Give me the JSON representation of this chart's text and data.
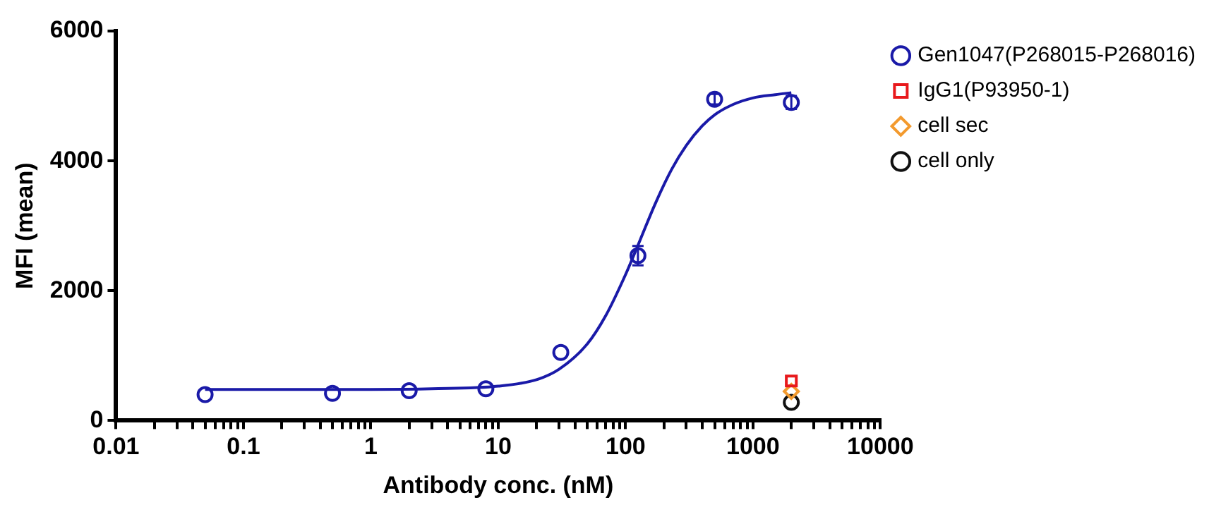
{
  "chart_data": {
    "type": "scatter",
    "xlabel": "Antibody conc. (nM)",
    "ylabel": "MFI (mean)",
    "log": "x",
    "xlim": [
      0.01,
      10000
    ],
    "xticks": [
      0.01,
      {
        "value": 0.02,
        "label": null
      },
      {
        "value": 0.03,
        "label": null
      },
      {
        "value": 0.04,
        "label": null
      },
      {
        "value": 0.05,
        "label": null
      },
      {
        "value": 0.06,
        "label": null
      },
      {
        "value": 0.07,
        "label": null
      },
      {
        "value": 0.08,
        "label": null
      },
      {
        "value": 0.09,
        "label": null
      },
      0.1,
      {
        "value": 0.2,
        "label": null
      },
      {
        "value": 0.3,
        "label": null
      },
      {
        "value": 0.4,
        "label": null
      },
      {
        "value": 0.5,
        "label": null
      },
      {
        "value": 0.6,
        "label": null
      },
      {
        "value": 0.7,
        "label": null
      },
      {
        "value": 0.8,
        "label": null
      },
      {
        "value": 0.9,
        "label": null
      },
      1,
      {
        "value": 2,
        "label": null
      },
      {
        "value": 3,
        "label": null
      },
      {
        "value": 4,
        "label": null
      },
      {
        "value": 5,
        "label": null
      },
      {
        "value": 6,
        "label": null
      },
      {
        "value": 7,
        "label": null
      },
      {
        "value": 8,
        "label": null
      },
      {
        "value": 9,
        "label": null
      },
      10,
      {
        "value": 20,
        "label": null
      },
      {
        "value": 30,
        "label": null
      },
      {
        "value": 40,
        "label": null
      },
      {
        "value": 50,
        "label": null
      },
      {
        "value": 60,
        "label": null
      },
      {
        "value": 70,
        "label": null
      },
      {
        "value": 80,
        "label": null
      },
      {
        "value": 90,
        "label": null
      },
      100,
      {
        "value": 200,
        "label": null
      },
      {
        "value": 300,
        "label": null
      },
      {
        "value": 400,
        "label": null
      },
      {
        "value": 500,
        "label": null
      },
      {
        "value": 600,
        "label": null
      },
      {
        "value": 700,
        "label": null
      },
      {
        "value": 800,
        "label": null
      },
      {
        "value": 900,
        "label": null
      },
      1000,
      {
        "value": 2000,
        "label": null
      },
      {
        "value": 3000,
        "label": null
      },
      {
        "value": 4000,
        "label": null
      },
      {
        "value": 5000,
        "label": null
      },
      {
        "value": 6000,
        "label": null
      },
      {
        "value": 7000,
        "label": null
      },
      {
        "value": 8000,
        "label": null
      },
      {
        "value": 9000,
        "label": null
      },
      10000
    ],
    "ylim": [
      0,
      6000
    ],
    "yticks": [
      0,
      2000,
      4000,
      6000
    ],
    "grid": false,
    "legend": "right",
    "series": [
      {
        "name": "Gen1047(P268015-P268016)",
        "color": "#1a1aa8",
        "marker": "circle",
        "x": [
          0.05,
          0.5,
          2,
          8,
          31,
          125,
          500,
          2000
        ],
        "values": [
          400,
          420,
          460,
          490,
          1050,
          2540,
          4950,
          4900
        ],
        "errors": [
          null,
          null,
          null,
          null,
          null,
          150,
          80,
          100
        ]
      },
      {
        "name": "IgG1(P93950-1)",
        "color": "#e8191c",
        "marker": "square",
        "x": [
          2000
        ],
        "values": [
          610
        ]
      },
      {
        "name": "cell sec",
        "color": "#f39a2e",
        "marker": "diamond",
        "x": [
          2000
        ],
        "values": [
          450
        ]
      },
      {
        "name": "cell only",
        "color": "#111111",
        "marker": "circle",
        "x": [
          2000
        ],
        "values": [
          280
        ]
      },
      {
        "type": "line",
        "color": "#1a1aa8",
        "marker": "none",
        "x": [
          0.05,
          0.1,
          1,
          3,
          10,
          20,
          30,
          50,
          70,
          100,
          130,
          170,
          230,
          300,
          400,
          500,
          700,
          1000,
          1500,
          2000
        ],
        "values": [
          480,
          480,
          480,
          490,
          530,
          630,
          790,
          1180,
          1620,
          2250,
          2780,
          3330,
          3870,
          4240,
          4540,
          4710,
          4870,
          4970,
          5020,
          5050
        ]
      }
    ]
  }
}
